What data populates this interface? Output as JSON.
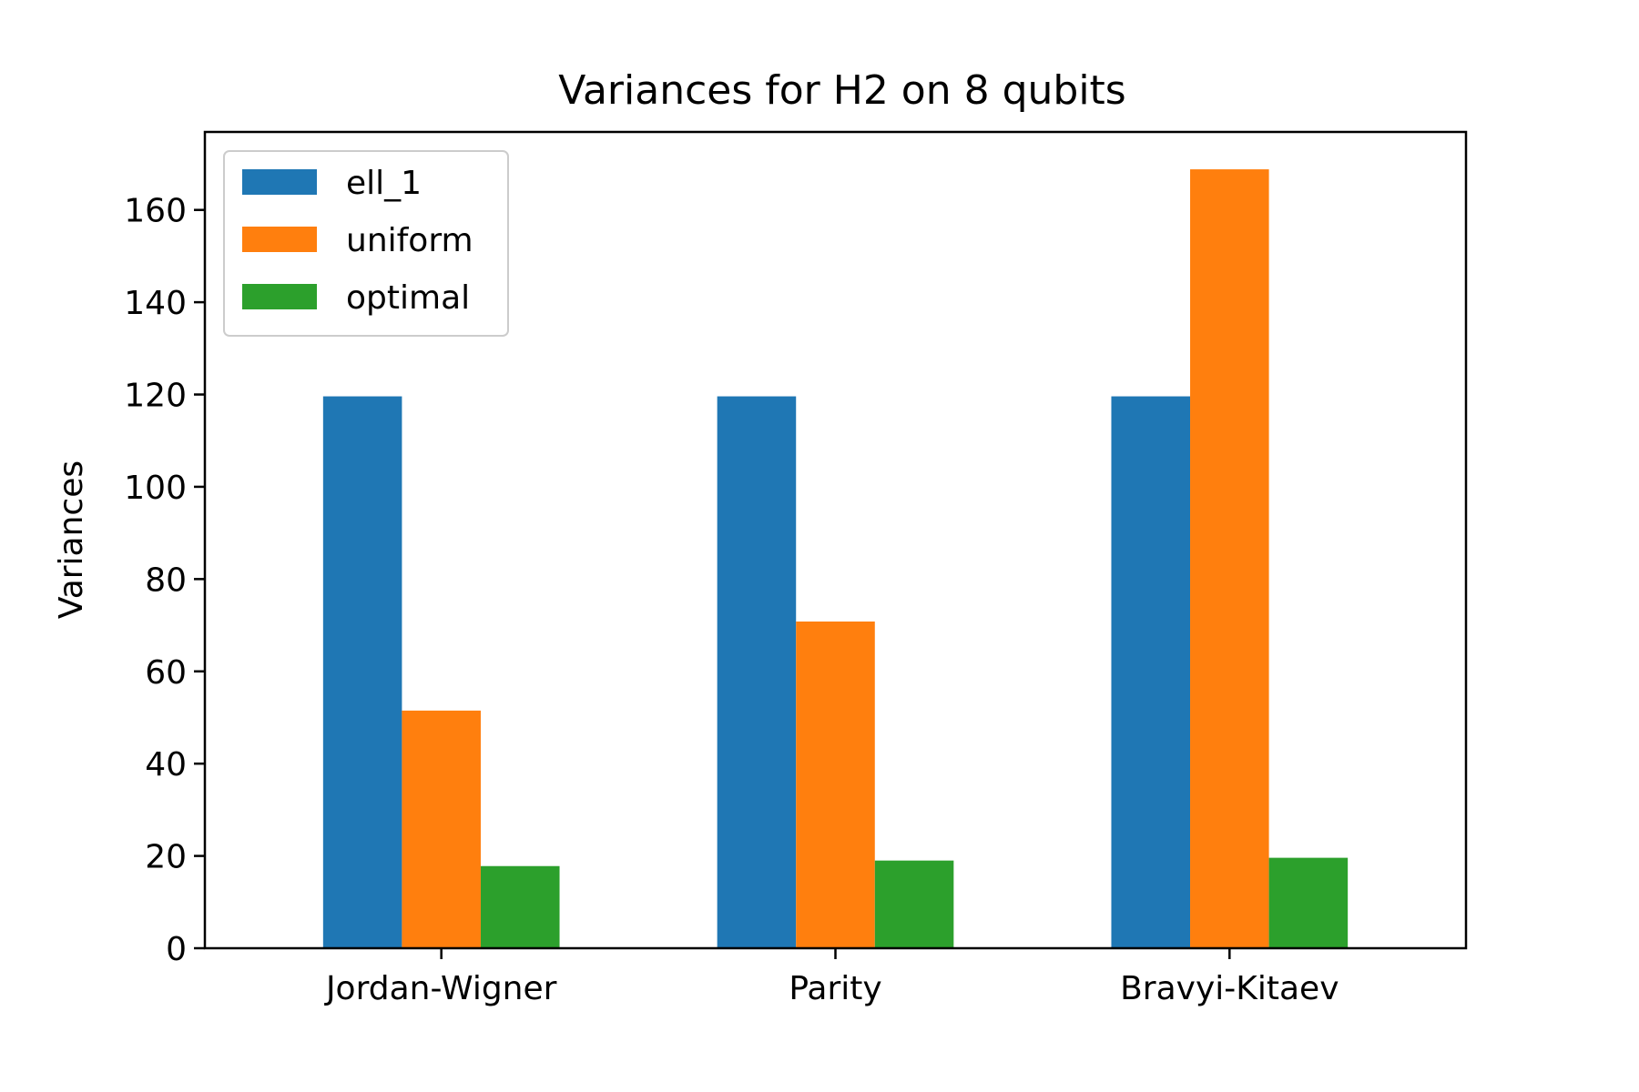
{
  "chart_data": {
    "type": "bar",
    "title": "Variances for H2 on 8 qubits",
    "xlabel": "",
    "ylabel": "Variances",
    "categories": [
      "Jordan-Wigner",
      "Parity",
      "Bravyi-Kitaev"
    ],
    "series": [
      {
        "name": "ell_1",
        "values": [
          119.6,
          119.6,
          119.6
        ],
        "color": "#1f77b4"
      },
      {
        "name": "uniform",
        "values": [
          51.5,
          70.8,
          168.8
        ],
        "color": "#ff7f0e"
      },
      {
        "name": "optimal",
        "values": [
          17.8,
          19.0,
          19.6
        ],
        "color": "#2ca02c"
      }
    ],
    "ylim": [
      0,
      176.9
    ],
    "yticks": [
      "0",
      "20",
      "40",
      "60",
      "80",
      "100",
      "120",
      "140",
      "160"
    ],
    "legend": "top-left",
    "grid": false
  }
}
